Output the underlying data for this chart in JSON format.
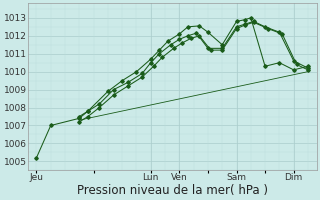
{
  "xlabel": "Pression niveau de la mer( hPa )",
  "background_color": "#cceae8",
  "plot_bg_color": "#cceae8",
  "grid_major_color": "#aacccc",
  "grid_minor_color": "#bbdddd",
  "line_color": "#1a5c1a",
  "ylim": [
    1004.5,
    1013.8
  ],
  "yticks": [
    1005,
    1006,
    1007,
    1008,
    1009,
    1010,
    1011,
    1012,
    1013
  ],
  "xlim": [
    -0.3,
    9.8
  ],
  "day_labels": [
    "Jeu",
    "",
    "Lun",
    "Ven",
    "",
    "Sam",
    "",
    "Dim"
  ],
  "day_positions": [
    0,
    2,
    4,
    5,
    6,
    7,
    8,
    9
  ],
  "vline_positions": [
    4,
    5,
    7,
    9
  ],
  "xlabel_fontsize": 8.5,
  "tick_fontsize": 6.5,
  "series1_x": [
    0.0,
    0.5,
    1.5,
    1.8,
    2.5,
    3.0,
    3.5,
    4.0,
    4.3,
    4.6,
    5.0,
    5.3,
    5.7,
    6.0,
    6.5,
    7.0,
    7.3,
    7.5,
    8.0,
    8.5,
    9.0,
    9.5
  ],
  "series1_y": [
    1005.2,
    1007.0,
    1007.4,
    1007.8,
    1008.9,
    1009.5,
    1010.0,
    1010.7,
    1011.2,
    1011.7,
    1012.1,
    1012.5,
    1012.55,
    1012.2,
    1011.5,
    1012.8,
    1012.9,
    1013.0,
    1010.3,
    1010.5,
    1010.1,
    1010.3
  ],
  "series2_x": [
    1.5,
    1.8,
    2.2,
    2.7,
    3.2,
    3.7,
    4.0,
    4.3,
    4.7,
    5.0,
    5.3,
    5.6,
    6.0,
    6.5,
    7.0,
    7.3,
    7.6,
    8.0,
    8.5,
    9.0,
    9.5
  ],
  "series2_y": [
    1007.5,
    1007.8,
    1008.2,
    1009.0,
    1009.4,
    1009.9,
    1010.5,
    1011.0,
    1011.5,
    1011.8,
    1012.0,
    1012.15,
    1011.3,
    1011.3,
    1012.5,
    1012.65,
    1012.8,
    1012.5,
    1012.2,
    1010.6,
    1010.2
  ],
  "series3_x": [
    1.5,
    1.8,
    2.2,
    2.7,
    3.2,
    3.7,
    4.1,
    4.4,
    4.8,
    5.1,
    5.4,
    5.7,
    6.1,
    6.5,
    7.0,
    7.3,
    7.6,
    8.1,
    8.6,
    9.1,
    9.5
  ],
  "series3_y": [
    1007.2,
    1007.5,
    1008.0,
    1008.7,
    1009.2,
    1009.7,
    1010.3,
    1010.8,
    1011.3,
    1011.6,
    1011.85,
    1012.0,
    1011.2,
    1011.2,
    1012.4,
    1012.6,
    1012.75,
    1012.4,
    1012.1,
    1010.4,
    1010.1
  ],
  "series4_x": [
    1.5,
    9.5
  ],
  "series4_y": [
    1007.3,
    1010.0
  ]
}
